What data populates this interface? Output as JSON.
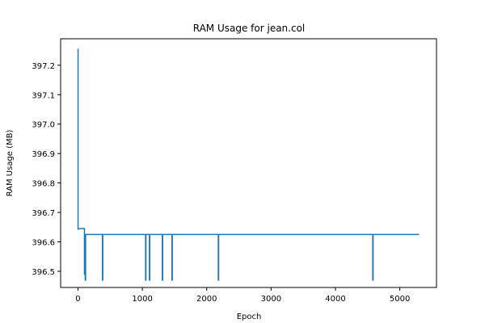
{
  "chart_data": {
    "type": "line",
    "title": "RAM Usage for jean.col",
    "xlabel": "Epoch",
    "ylabel": "RAM Usage (MB)",
    "xlim": [
      -270,
      5570
    ],
    "ylim": [
      396.445,
      397.29
    ],
    "xticks": [
      0,
      1000,
      2000,
      3000,
      4000,
      5000
    ],
    "yticks": [
      396.5,
      396.6,
      396.7,
      396.8,
      396.9,
      397.0,
      397.1,
      397.2
    ],
    "ytick_labels": [
      "396.5",
      "396.6",
      "396.7",
      "396.8",
      "396.9",
      "397.0",
      "397.1",
      "397.2"
    ],
    "grid": false,
    "series": [
      {
        "color": "#1f77b4",
        "x": [
          0,
          1,
          1,
          2,
          3,
          4,
          100,
          100,
          104,
          104,
          106,
          112,
          112,
          118,
          118,
          120,
          380,
          380,
          385,
          385,
          390,
          1050,
          1050,
          1055,
          1055,
          1060,
          1110,
          1110,
          1115,
          1115,
          1120,
          1310,
          1310,
          1315,
          1315,
          1320,
          1460,
          1460,
          1465,
          1465,
          1470,
          2180,
          2180,
          2185,
          2185,
          2190,
          4580,
          4580,
          4585,
          4585,
          4590,
          5300
        ],
        "y": [
          397.255,
          397.255,
          396.643,
          396.643,
          396.643,
          396.645,
          396.645,
          396.49,
          396.49,
          396.625,
          396.625,
          396.625,
          396.47,
          396.47,
          396.625,
          396.625,
          396.625,
          396.47,
          396.47,
          396.625,
          396.625,
          396.625,
          396.47,
          396.47,
          396.625,
          396.625,
          396.625,
          396.47,
          396.47,
          396.625,
          396.625,
          396.625,
          396.47,
          396.47,
          396.625,
          396.625,
          396.625,
          396.47,
          396.47,
          396.625,
          396.625,
          396.625,
          396.47,
          396.47,
          396.625,
          396.625,
          396.625,
          396.47,
          396.47,
          396.625,
          396.625,
          396.625
        ]
      }
    ]
  }
}
